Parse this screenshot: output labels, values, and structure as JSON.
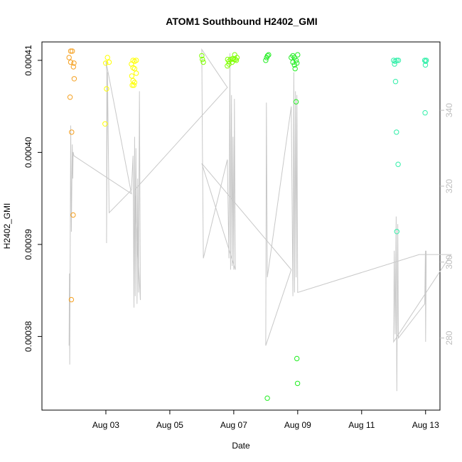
{
  "chart_data": {
    "type": "scatter",
    "title": "ATOM1 Southbound H2402_GMI",
    "xlabel": "Date",
    "ylabel": "H2402_GMI",
    "x_unit": "days",
    "xlim": [
      "2018-08-01",
      "2018-08-13.45"
    ],
    "x_ticks": [
      {
        "date": "2018-08-03",
        "label": "Aug 03"
      },
      {
        "date": "2018-08-05",
        "label": "Aug 05"
      },
      {
        "date": "2018-08-07",
        "label": "Aug 07"
      },
      {
        "date": "2018-08-09",
        "label": "Aug 09"
      },
      {
        "date": "2018-08-11",
        "label": "Aug 11"
      },
      {
        "date": "2018-08-13",
        "label": "Aug 13"
      }
    ],
    "ylim": [
      0.000372,
      0.000412
    ],
    "y_ticks": [
      {
        "value": 0.00038,
        "label": "0.00038"
      },
      {
        "value": 0.00039,
        "label": "0.00039"
      },
      {
        "value": 0.0004,
        "label": "0.00040"
      },
      {
        "value": 0.00041,
        "label": "0.00041"
      }
    ],
    "y2lim": [
      261,
      358
    ],
    "y2_ticks": [
      {
        "value": 280,
        "label": "280"
      },
      {
        "value": 300,
        "label": "300"
      },
      {
        "value": 320,
        "label": "320"
      },
      {
        "value": 340,
        "label": "340"
      }
    ],
    "grid": false,
    "line_color": "#c8c8c8",
    "series": [
      {
        "kind": "points",
        "points": [
          {
            "x": "2018-08-01 21:36",
            "y": 0.000411,
            "color": "#f5a020"
          },
          {
            "x": "2018-08-01 22:48",
            "y": 0.000411,
            "color": "#f5a020"
          },
          {
            "x": "2018-08-01 20:24",
            "y": 0.0004103,
            "color": "#f5a020"
          },
          {
            "x": "2018-08-01 21:36",
            "y": 0.0004098,
            "color": "#f5a020"
          },
          {
            "x": "2018-08-02 00:00",
            "y": 0.0004097,
            "color": "#f5a020"
          },
          {
            "x": "2018-08-01 23:38",
            "y": 0.0004093,
            "color": "#f5a020"
          },
          {
            "x": "2018-08-02 00:14",
            "y": 0.000408,
            "color": "#f5a020"
          },
          {
            "x": "2018-08-01 21:07",
            "y": 0.000406,
            "color": "#f5a020"
          },
          {
            "x": "2018-08-01 22:19",
            "y": 0.0004022,
            "color": "#f5a020"
          },
          {
            "x": "2018-08-01 23:24",
            "y": 0.0003932,
            "color": "#f5a020"
          },
          {
            "x": "2018-08-01 22:05",
            "y": 0.000384,
            "color": "#f5a020"
          },
          {
            "x": "2018-08-03 01:12",
            "y": 0.0004103,
            "color": "#ffff00"
          },
          {
            "x": "2018-08-03 02:24",
            "y": 0.0004098,
            "color": "#ffff00"
          },
          {
            "x": "2018-08-02 23:52",
            "y": 0.0004097,
            "color": "#ffff00"
          },
          {
            "x": "2018-08-03 00:29",
            "y": 0.0004069,
            "color": "#ffff00"
          },
          {
            "x": "2018-08-02 23:24",
            "y": 0.0004031,
            "color": "#ffff00"
          },
          {
            "x": "2018-08-03 20:24",
            "y": 0.00041,
            "color": "#ffff00"
          },
          {
            "x": "2018-08-03 21:36",
            "y": 0.0004099,
            "color": "#ffff00"
          },
          {
            "x": "2018-08-03 22:48",
            "y": 0.00041,
            "color": "#ffff00"
          },
          {
            "x": "2018-08-03 19:12",
            "y": 0.0004096,
            "color": "#ffff00"
          },
          {
            "x": "2018-08-03 20:24",
            "y": 0.0004092,
            "color": "#ffff00"
          },
          {
            "x": "2018-08-03 21:36",
            "y": 0.0004091,
            "color": "#ffff00"
          },
          {
            "x": "2018-08-03 19:26",
            "y": 0.0004083,
            "color": "#ffff00"
          },
          {
            "x": "2018-08-03 22:48",
            "y": 0.0004086,
            "color": "#ffff00"
          },
          {
            "x": "2018-08-03 20:24",
            "y": 0.0004078,
            "color": "#ffff00"
          },
          {
            "x": "2018-08-03 21:36",
            "y": 0.0004076,
            "color": "#ffff00"
          },
          {
            "x": "2018-08-03 19:48",
            "y": 0.0004073,
            "color": "#ffff00"
          },
          {
            "x": "2018-08-03 21:00",
            "y": 0.0004073,
            "color": "#ffff00"
          },
          {
            "x": "2018-08-06 00:00",
            "y": 0.0004105,
            "color": "#7fff00"
          },
          {
            "x": "2018-08-06 00:29",
            "y": 0.0004101,
            "color": "#7fff00"
          },
          {
            "x": "2018-08-06 01:12",
            "y": 0.0004098,
            "color": "#7fff00"
          },
          {
            "x": "2018-08-06 19:12",
            "y": 0.0004094,
            "color": "#7fff00"
          },
          {
            "x": "2018-08-06 19:26",
            "y": 0.0004101,
            "color": "#7fff00"
          },
          {
            "x": "2018-08-06 20:24",
            "y": 0.0004099,
            "color": "#7fff00"
          },
          {
            "x": "2018-08-06 21:36",
            "y": 0.0004101,
            "color": "#7fff00"
          },
          {
            "x": "2018-08-06 22:48",
            "y": 0.0004098,
            "color": "#7fff00"
          },
          {
            "x": "2018-08-06 23:24",
            "y": 0.0004102,
            "color": "#7fff00"
          },
          {
            "x": "2018-08-07 00:00",
            "y": 0.0004101,
            "color": "#7fff00"
          },
          {
            "x": "2018-08-07 00:43",
            "y": 0.0004106,
            "color": "#7fff00"
          },
          {
            "x": "2018-08-07 01:12",
            "y": 0.0004101,
            "color": "#7fff00"
          },
          {
            "x": "2018-08-07 01:55",
            "y": 0.00041,
            "color": "#7fff00"
          },
          {
            "x": "2018-08-07 02:24",
            "y": 0.0004103,
            "color": "#7fff00"
          },
          {
            "x": "2018-08-06 20:24",
            "y": 0.0004096,
            "color": "#7fff00"
          },
          {
            "x": "2018-08-08 00:00",
            "y": 0.00041,
            "color": "#22ee22"
          },
          {
            "x": "2018-08-08 00:43",
            "y": 0.0004103,
            "color": "#22ee22"
          },
          {
            "x": "2018-08-08 01:26",
            "y": 0.0004105,
            "color": "#22ee22"
          },
          {
            "x": "2018-08-08 02:09",
            "y": 0.0004106,
            "color": "#22ee22"
          },
          {
            "x": "2018-08-08 01:12",
            "y": 0.0003733,
            "color": "#22ee22"
          },
          {
            "x": "2018-08-08 19:12",
            "y": 0.0004103,
            "color": "#22ee22"
          },
          {
            "x": "2018-08-08 20:24",
            "y": 0.0004105,
            "color": "#22ee22"
          },
          {
            "x": "2018-08-08 21:36",
            "y": 0.0004103,
            "color": "#22ee22"
          },
          {
            "x": "2018-08-08 22:48",
            "y": 0.00041,
            "color": "#22ee22"
          },
          {
            "x": "2018-08-09 00:00",
            "y": 0.0004106,
            "color": "#22ee22"
          },
          {
            "x": "2018-08-08 20:24",
            "y": 0.0004098,
            "color": "#22ee22"
          },
          {
            "x": "2018-08-08 21:36",
            "y": 0.0004095,
            "color": "#22ee22"
          },
          {
            "x": "2018-08-08 23:24",
            "y": 0.0004097,
            "color": "#22ee22"
          },
          {
            "x": "2018-08-08 22:05",
            "y": 0.0004091,
            "color": "#22ee22"
          },
          {
            "x": "2018-08-08 22:48",
            "y": 0.0004055,
            "color": "#22ee22"
          },
          {
            "x": "2018-08-08 23:24",
            "y": 0.0003776,
            "color": "#22ee22"
          },
          {
            "x": "2018-08-08 23:52",
            "y": 0.0003749,
            "color": "#22ee22"
          },
          {
            "x": "2018-08-12 00:00",
            "y": 0.00041,
            "color": "#2fefa8"
          },
          {
            "x": "2018-08-12 01:12",
            "y": 0.0004099,
            "color": "#2fefa8"
          },
          {
            "x": "2018-08-12 02:24",
            "y": 0.00041,
            "color": "#2fefa8"
          },
          {
            "x": "2018-08-12 03:36",
            "y": 0.00041,
            "color": "#2fefa8"
          },
          {
            "x": "2018-08-12 00:43",
            "y": 0.0004096,
            "color": "#2fefa8"
          },
          {
            "x": "2018-08-12 01:26",
            "y": 0.0004077,
            "color": "#2fefa8"
          },
          {
            "x": "2018-08-12 02:09",
            "y": 0.0004022,
            "color": "#2fefa8"
          },
          {
            "x": "2018-08-12 03:22",
            "y": 0.0003987,
            "color": "#2fefa8"
          },
          {
            "x": "2018-08-12 02:24",
            "y": 0.0003914,
            "color": "#2fefa8"
          },
          {
            "x": "2018-08-12 23:24",
            "y": 0.00041,
            "color": "#2fefa8"
          },
          {
            "x": "2018-08-13 00:00",
            "y": 0.0004099,
            "color": "#2fefa8"
          },
          {
            "x": "2018-08-13 00:29",
            "y": 0.00041,
            "color": "#2fefa8"
          },
          {
            "x": "2018-08-12 23:52",
            "y": 0.0004095,
            "color": "#2fefa8"
          },
          {
            "x": "2018-08-12 23:38",
            "y": 0.0004043,
            "color": "#2fefa8"
          }
        ]
      },
      {
        "kind": "line",
        "axis": "right",
        "points": [
          [
            "2018-08-01 20:24",
            278
          ],
          [
            "2018-08-01 20:38",
            297
          ],
          [
            "2018-08-01 20:53",
            273
          ],
          [
            "2018-08-01 21:36",
            336
          ],
          [
            "2018-08-01 22:05",
            308
          ],
          [
            "2018-08-01 22:48",
            331
          ],
          [
            "2018-08-01 23:09",
            322
          ],
          [
            "2018-08-01 23:24",
            329
          ],
          [
            "2018-08-02 00:00",
            328
          ],
          [
            "2018-08-03 19:12",
            318
          ],
          [
            "2018-08-03 00:00",
            353
          ],
          [
            "2018-08-03 00:43",
            350
          ],
          [
            "2018-08-03 00:29",
            305
          ],
          [
            "2018-08-03 01:12",
            350
          ],
          [
            "2018-08-03 02:24",
            313
          ],
          [
            "2018-08-03 19:12",
            319
          ],
          [
            "2018-08-03 20:24",
            328
          ],
          [
            "2018-08-03 21:07",
            288
          ],
          [
            "2018-08-03 21:36",
            333
          ],
          [
            "2018-08-03 22:05",
            291
          ],
          [
            "2018-08-03 22:33",
            330
          ],
          [
            "2018-08-03 23:24",
            289
          ],
          [
            "2018-08-03 23:52",
            322
          ],
          [
            "2018-08-04 00:29",
            292
          ],
          [
            "2018-08-04 01:12",
            345
          ],
          [
            "2018-08-04 01:55",
            290
          ],
          [
            "2018-08-03 21:36",
            319
          ],
          [
            "2018-08-06 19:12",
            346
          ],
          [
            "2018-08-06 00:00",
            356
          ],
          [
            "2018-08-06 00:29",
            330
          ],
          [
            "2018-08-06 01:12",
            301
          ],
          [
            "2018-08-06 19:12",
            327
          ],
          [
            "2018-08-06 20:24",
            301
          ],
          [
            "2018-08-06 21:07",
            355
          ],
          [
            "2018-08-06 21:36",
            298
          ],
          [
            "2018-08-06 22:19",
            344
          ],
          [
            "2018-08-06 22:48",
            299
          ],
          [
            "2018-08-06 23:24",
            333
          ],
          [
            "2018-08-07 00:00",
            298
          ],
          [
            "2018-08-07 00:29",
            343
          ],
          [
            "2018-08-07 01:12",
            298
          ],
          [
            "2018-08-06 00:00",
            326
          ],
          [
            "2018-08-08 19:12",
            298
          ],
          [
            "2018-08-08 00:00",
            278
          ],
          [
            "2018-08-08 00:29",
            342
          ],
          [
            "2018-08-08 01:12",
            296
          ],
          [
            "2018-08-08 19:12",
            341
          ],
          [
            "2018-08-08 20:24",
            291
          ],
          [
            "2018-08-08 21:07",
            350
          ],
          [
            "2018-08-08 21:36",
            292
          ],
          [
            "2018-08-08 22:19",
            345
          ],
          [
            "2018-08-08 22:48",
            296
          ],
          [
            "2018-08-08 23:24",
            344
          ],
          [
            "2018-08-09 00:00",
            292
          ],
          [
            "2018-08-12 19:12",
            302
          ],
          [
            "2018-08-13 19:12",
            302
          ],
          [
            "2018-08-12 00:00",
            279
          ],
          [
            "2018-08-12 00:29",
            303
          ],
          [
            "2018-08-12 01:12",
            281
          ],
          [
            "2018-08-12 01:55",
            312
          ],
          [
            "2018-08-12 02:24",
            266
          ],
          [
            "2018-08-12 03:07",
            310
          ],
          [
            "2018-08-12 03:36",
            280
          ],
          [
            "2018-08-12 23:24",
            289
          ],
          [
            "2018-08-12 23:52",
            303
          ],
          [
            "2018-08-13 00:00",
            279
          ],
          [
            "2018-08-13 00:29",
            303
          ]
        ]
      }
    ]
  }
}
